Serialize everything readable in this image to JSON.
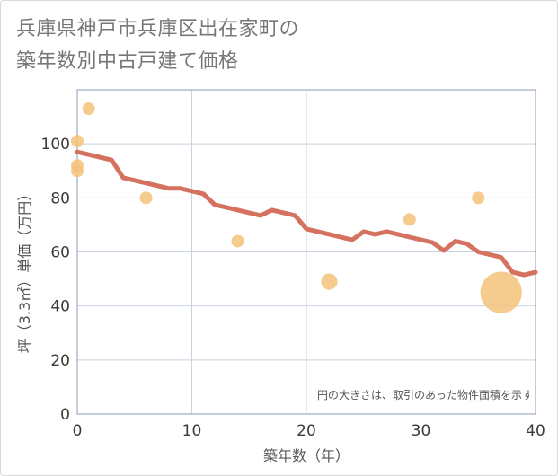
{
  "title_lines": [
    "兵庫県神戸市兵庫区出在家町の",
    "築年数別中古戸建て価格"
  ],
  "chart_data": {
    "type": "scatter+line",
    "title": "兵庫県神戸市兵庫区出在家町の築年数別中古戸建て価格",
    "xlabel": "築年数（年）",
    "ylabel": "坪（3.3㎡）単価（万円）",
    "xlim": [
      0,
      40
    ],
    "ylim": [
      0,
      120
    ],
    "xticks": [
      0,
      10,
      20,
      30,
      40
    ],
    "yticks": [
      0,
      20,
      40,
      60,
      80,
      100
    ],
    "grid": true,
    "annotation": "円の大きさは、取引のあった物件面積を示す",
    "colors": {
      "line": "#d4725f",
      "bubble": "#f5c27a"
    },
    "scatter": [
      {
        "x": 0,
        "y": 101,
        "size": 1
      },
      {
        "x": 0,
        "y": 92,
        "size": 1
      },
      {
        "x": 0,
        "y": 90,
        "size": 1
      },
      {
        "x": 1,
        "y": 113,
        "size": 1
      },
      {
        "x": 6,
        "y": 80,
        "size": 1
      },
      {
        "x": 14,
        "y": 64,
        "size": 1
      },
      {
        "x": 22,
        "y": 49,
        "size": 1.3
      },
      {
        "x": 29,
        "y": 72,
        "size": 1
      },
      {
        "x": 35,
        "y": 80,
        "size": 1
      },
      {
        "x": 37,
        "y": 45,
        "size": 3.3
      }
    ],
    "line": {
      "x": [
        0,
        1,
        2,
        3,
        4,
        5,
        6,
        7,
        8,
        9,
        10,
        11,
        12,
        13,
        14,
        15,
        16,
        17,
        18,
        19,
        20,
        21,
        22,
        23,
        24,
        25,
        26,
        27,
        28,
        29,
        30,
        31,
        32,
        33,
        34,
        35,
        36,
        37,
        38,
        39,
        40
      ],
      "y": [
        97,
        96,
        95,
        94,
        87.5,
        86.5,
        85.5,
        84.5,
        83.5,
        83.5,
        82.5,
        81.5,
        77.5,
        76.5,
        75.5,
        74.5,
        73.5,
        75.5,
        74.5,
        73.5,
        68.5,
        67.5,
        66.5,
        65.5,
        64.5,
        67.5,
        66.5,
        67.5,
        66.5,
        65.5,
        64.5,
        63.5,
        60.5,
        64,
        63,
        60,
        59,
        58,
        52.5,
        51.5,
        52.5
      ]
    }
  }
}
